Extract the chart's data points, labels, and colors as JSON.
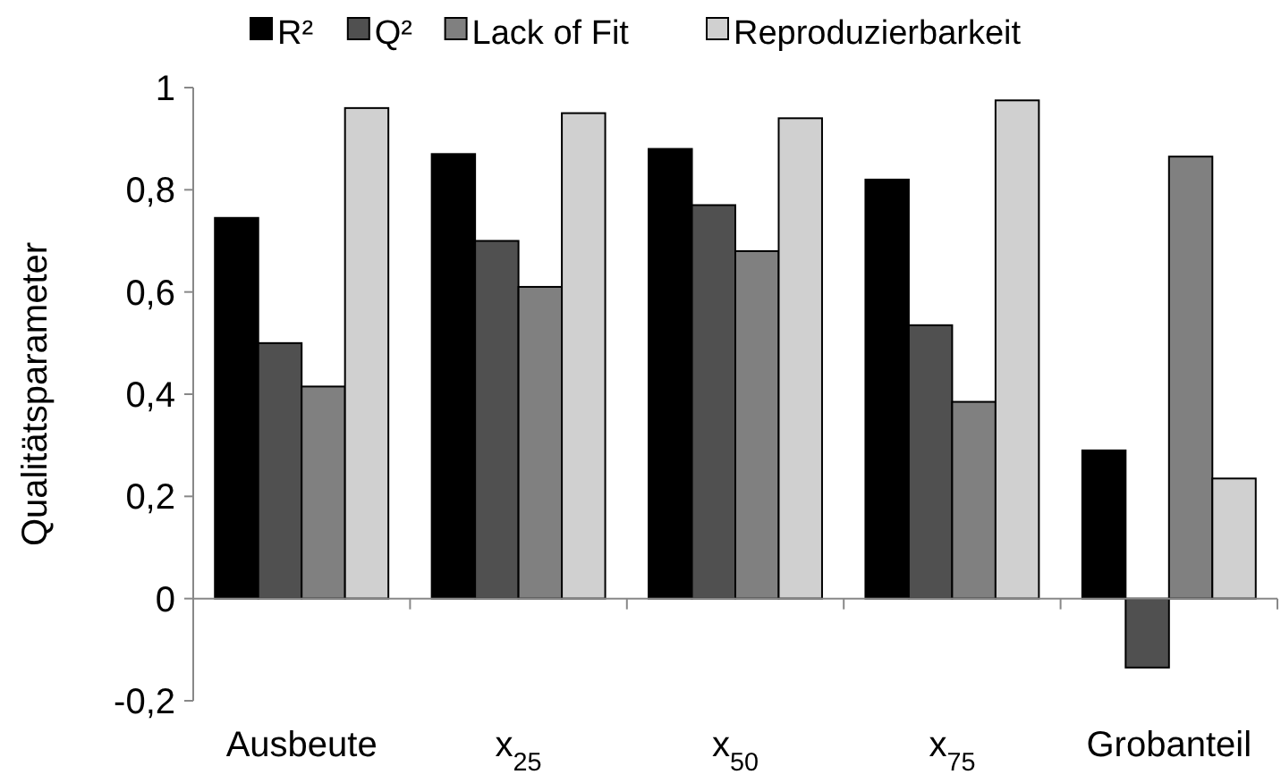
{
  "chart_data": {
    "type": "bar",
    "ylabel": "Qualitätsparameter",
    "categories": [
      "Ausbeute",
      "x$_{25}$",
      "x$_{50}$",
      "x$_{75}$",
      "Grobanteil"
    ],
    "series": [
      {
        "name": "R²",
        "color": "#000000",
        "values": [
          0.745,
          0.87,
          0.88,
          0.82,
          0.29
        ]
      },
      {
        "name": "Q²",
        "color": "#505050",
        "values": [
          0.5,
          0.7,
          0.77,
          0.535,
          -0.135
        ]
      },
      {
        "name": "Lack of Fit",
        "color": "#808080",
        "values": [
          0.415,
          0.61,
          0.68,
          0.385,
          0.865
        ]
      },
      {
        "name": "Reproduzierbarkeit",
        "color": "#d0d0d0",
        "values": [
          0.96,
          0.95,
          0.94,
          0.975,
          0.235
        ]
      }
    ],
    "ylim": [
      -0.2,
      1
    ],
    "yticks": [
      {
        "value": -0.2,
        "label": "-0,2"
      },
      0,
      {
        "value": 0.2,
        "label": "0,2"
      },
      {
        "value": 0.4,
        "label": "0,4"
      },
      {
        "value": 0.6,
        "label": "0,6"
      },
      {
        "value": 0.8,
        "label": "0,8"
      },
      1
    ],
    "legend": "top"
  }
}
